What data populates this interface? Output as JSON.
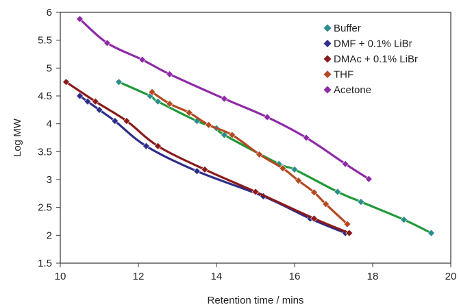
{
  "chart_data": {
    "type": "line",
    "title": "",
    "xlabel": "Retention time / mins",
    "ylabel": "Log MW",
    "xlim": [
      10,
      20
    ],
    "ylim": [
      1.5,
      6
    ],
    "x_ticks": [
      "10",
      "12",
      "14",
      "16",
      "18",
      "20"
    ],
    "y_ticks": [
      "1.5",
      "2",
      "2.5",
      "3",
      "3.5",
      "4",
      "4.5",
      "5",
      "5.5",
      "6"
    ],
    "grid": false,
    "legend_position": "top-right",
    "series": [
      {
        "name": "Buffer",
        "color": "#1f9a3a",
        "marker_color": "#2b8c8c",
        "points": [
          [
            11.5,
            4.75
          ],
          [
            12.3,
            4.5
          ],
          [
            12.5,
            4.4
          ],
          [
            13.5,
            4.05
          ],
          [
            14.0,
            3.92
          ],
          [
            14.2,
            3.8
          ],
          [
            15.6,
            3.28
          ],
          [
            16.0,
            3.18
          ],
          [
            17.1,
            2.78
          ],
          [
            17.7,
            2.6
          ],
          [
            18.8,
            2.28
          ],
          [
            19.5,
            2.04
          ]
        ]
      },
      {
        "name": "DMF + 0.1% LiBr",
        "color": "#2e2e8a",
        "marker_color": "#2e2e8a",
        "points": [
          [
            10.5,
            4.5
          ],
          [
            10.7,
            4.4
          ],
          [
            11.0,
            4.25
          ],
          [
            11.4,
            4.05
          ],
          [
            12.2,
            3.6
          ],
          [
            13.5,
            3.15
          ],
          [
            15.2,
            2.7
          ],
          [
            16.4,
            2.3
          ],
          [
            17.3,
            2.04
          ]
        ]
      },
      {
        "name": "DMAc + 0.1% LiBr",
        "color": "#8b1a1a",
        "marker_color": "#8b1a1a",
        "points": [
          [
            10.15,
            4.75
          ],
          [
            10.9,
            4.4
          ],
          [
            11.7,
            4.05
          ],
          [
            12.5,
            3.6
          ],
          [
            13.7,
            3.18
          ],
          [
            15.0,
            2.78
          ],
          [
            16.5,
            2.3
          ],
          [
            17.4,
            2.04
          ]
        ]
      },
      {
        "name": "THF",
        "color": "#b54a22",
        "marker_color": "#b54a22",
        "points": [
          [
            12.35,
            4.57
          ],
          [
            12.8,
            4.36
          ],
          [
            13.3,
            4.2
          ],
          [
            13.8,
            3.98
          ],
          [
            14.4,
            3.8
          ],
          [
            15.1,
            3.45
          ],
          [
            15.7,
            3.2
          ],
          [
            16.1,
            2.98
          ],
          [
            16.5,
            2.77
          ],
          [
            16.8,
            2.56
          ],
          [
            17.35,
            2.2
          ]
        ]
      },
      {
        "name": "Acetone",
        "color": "#8e2aa6",
        "marker_color": "#8e2aa6",
        "points": [
          [
            10.5,
            5.88
          ],
          [
            11.2,
            5.45
          ],
          [
            12.1,
            5.15
          ],
          [
            12.8,
            4.89
          ],
          [
            14.2,
            4.45
          ],
          [
            15.3,
            4.12
          ],
          [
            16.3,
            3.75
          ],
          [
            17.3,
            3.28
          ],
          [
            17.9,
            3.01
          ]
        ]
      }
    ]
  }
}
